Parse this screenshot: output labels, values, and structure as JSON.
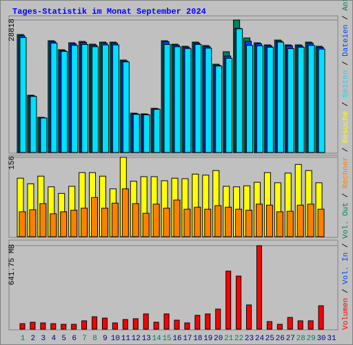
{
  "title": "Tages-Statistik im Monat September 2024",
  "legend_separator": " / ",
  "chart_data": [
    {
      "type": "bar",
      "ylim": [
        0,
        28818
      ],
      "yticks": [
        28818
      ],
      "series": [
        {
          "name": "Anfragen",
          "color": "#00805c",
          "values": [
            25666,
            12458,
            7655,
            24315,
            22364,
            23865,
            24165,
            23565,
            24015,
            24015,
            20113,
            8555,
            8405,
            9606,
            24315,
            23565,
            23114,
            24015,
            23265,
            19212,
            21914,
            28818,
            24915,
            23865,
            23415,
            24465,
            23415,
            23415,
            24015,
            23114,
            null
          ]
        },
        {
          "name": "Dateien",
          "color": "#0040ff",
          "values": [
            25400,
            12300,
            7560,
            24100,
            22150,
            23650,
            23950,
            23350,
            23800,
            23800,
            19900,
            8450,
            8300,
            9500,
            24100,
            23350,
            22900,
            23800,
            23050,
            19000,
            21000,
            27000,
            24200,
            23650,
            23200,
            24250,
            23200,
            23200,
            23800,
            22900,
            null
          ]
        },
        {
          "name": "Seiten",
          "color": "#00e0ff",
          "values": [
            25000,
            12200,
            7500,
            23800,
            22000,
            23300,
            23500,
            23000,
            23400,
            23400,
            19700,
            8300,
            8200,
            9400,
            23500,
            23000,
            22600,
            23500,
            22700,
            18800,
            20500,
            26900,
            23300,
            23200,
            22900,
            24000,
            22600,
            22900,
            23300,
            22500,
            null
          ]
        }
      ]
    },
    {
      "type": "bar",
      "ylim": [
        0,
        156
      ],
      "yticks": [
        156
      ],
      "series": [
        {
          "name": "Besuche",
          "color": "#ffff00",
          "values": [
            115,
            104,
            119,
            98,
            85,
            99,
            126,
            126,
            119,
            94,
            156,
            109,
            118,
            118,
            110,
            115,
            114,
            123,
            121,
            130,
            99,
            98,
            100,
            107,
            126,
            106,
            125,
            142,
            130,
            106,
            null
          ]
        },
        {
          "name": "Rechner",
          "color": "#ff8000",
          "values": [
            49,
            53,
            65,
            45,
            49,
            52,
            56,
            77,
            56,
            66,
            94,
            65,
            46,
            64,
            56,
            72,
            54,
            58,
            54,
            61,
            58,
            54,
            52,
            64,
            62,
            49,
            50,
            62,
            64,
            54,
            null
          ]
        }
      ]
    },
    {
      "type": "bar",
      "ylim": [
        0,
        641.75
      ],
      "yticks": [
        {
          "value": 641.75,
          "label": "641.75 MB"
        }
      ],
      "categories": [
        "1",
        "2",
        "3",
        "4",
        "5",
        "6",
        "7",
        "8",
        "9",
        "10",
        "11",
        "12",
        "13",
        "14",
        "15",
        "16",
        "17",
        "18",
        "19",
        "20",
        "21",
        "22",
        "23",
        "24",
        "25",
        "26",
        "27",
        "28",
        "29",
        "30",
        "31"
      ],
      "category_colors": [
        "#00805c",
        "#000080",
        "#000080",
        "#000080",
        "#000080",
        "#000080",
        "#00805c",
        "#00805c",
        "#000080",
        "#000080",
        "#000080",
        "#000080",
        "#000080",
        "#00805c",
        "#00805c",
        "#000080",
        "#000080",
        "#000080",
        "#000080",
        "#000080",
        "#00805c",
        "#00805c",
        "#000080",
        "#000080",
        "#000080",
        "#000080",
        "#000080",
        "#00805c",
        "#00805c",
        "#000080",
        "#000080"
      ],
      "series": [
        {
          "name": "Vol. Out",
          "color": "#00805c",
          "values": [
            null,
            null,
            null,
            null,
            null,
            null,
            null,
            null,
            null,
            null,
            null,
            null,
            null,
            null,
            null,
            null,
            null,
            null,
            null,
            null,
            null,
            null,
            null,
            null,
            null,
            null,
            null,
            null,
            null,
            null,
            null
          ]
        },
        {
          "name": "Vol. In",
          "color": "#0040ff",
          "values": [
            null,
            null,
            null,
            null,
            null,
            null,
            null,
            null,
            null,
            null,
            null,
            null,
            null,
            null,
            null,
            null,
            null,
            null,
            null,
            null,
            null,
            null,
            null,
            null,
            null,
            null,
            null,
            null,
            null,
            null,
            null
          ]
        },
        {
          "name": "Volumen",
          "color": "#ff0000",
          "values": [
            42,
            53,
            48,
            42,
            37,
            37,
            64,
            95,
            85,
            48,
            74,
            80,
            117,
            53,
            117,
            69,
            48,
            106,
            117,
            154,
            446,
            408,
            186,
            641.75,
            58,
            37,
            90,
            64,
            64,
            180,
            null
          ]
        }
      ]
    }
  ]
}
